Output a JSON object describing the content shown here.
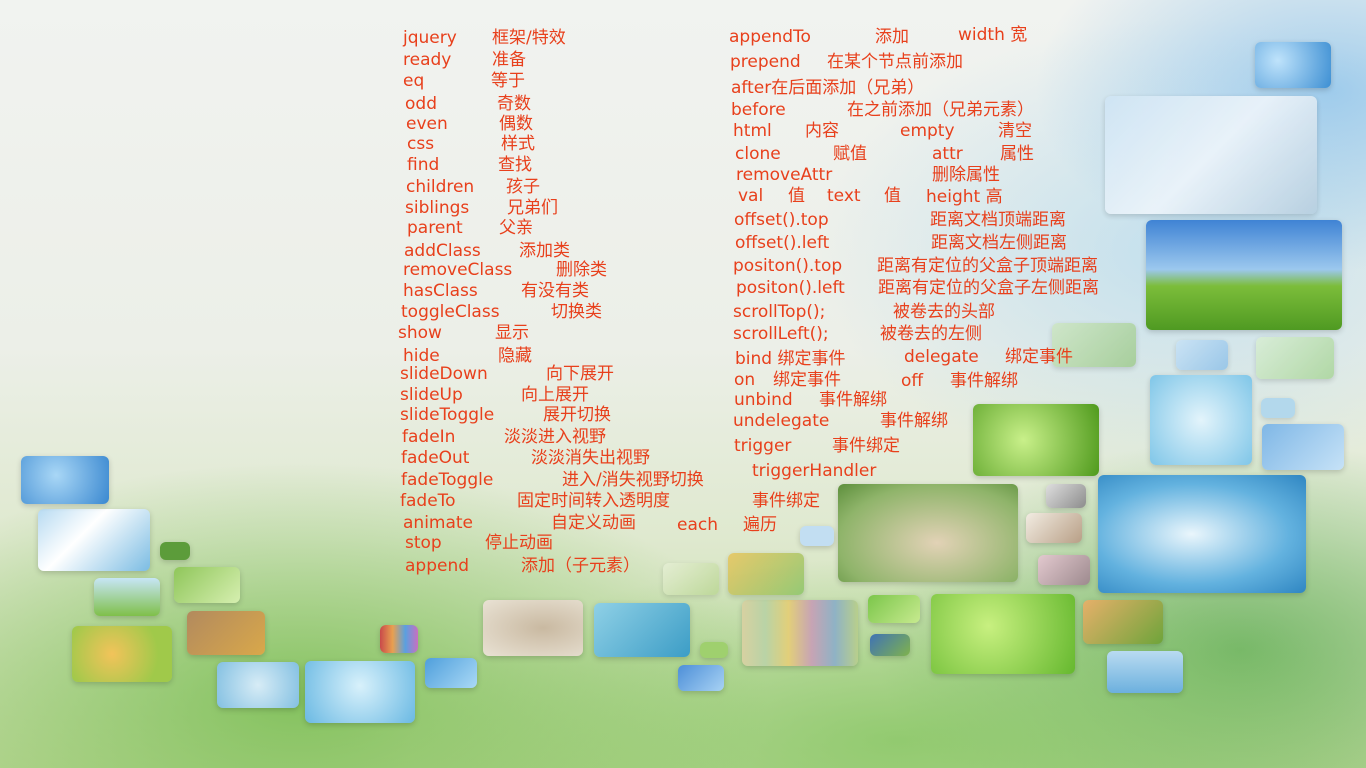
{
  "left_column": [
    {
      "term": "jquery",
      "desc": "框架/特效"
    },
    {
      "term": "ready",
      "desc": "准备"
    },
    {
      "term": "eq",
      "desc": "等于"
    },
    {
      "term": "odd",
      "desc": "奇数"
    },
    {
      "term": "even",
      "desc": "偶数"
    },
    {
      "term": "css",
      "desc": "样式"
    },
    {
      "term": "find",
      "desc": "查找"
    },
    {
      "term": "children",
      "desc": "孩子"
    },
    {
      "term": "siblings",
      "desc": "兄弟们"
    },
    {
      "term": "parent",
      "desc": "父亲"
    },
    {
      "term": "addClass",
      "desc": "添加类"
    },
    {
      "term": "removeClass",
      "desc": "删除类"
    },
    {
      "term": "hasClass",
      "desc": "有没有类"
    },
    {
      "term": "toggleClass",
      "desc": "切换类"
    },
    {
      "term": "show",
      "desc": "显示"
    },
    {
      "term": "hide",
      "desc": "隐藏"
    },
    {
      "term": "slideDown",
      "desc": "向下展开"
    },
    {
      "term": "slideUp",
      "desc": "向上展开"
    },
    {
      "term": "slideToggle",
      "desc": "展开切换"
    },
    {
      "term": "fadeIn",
      "desc": "淡淡进入视野"
    },
    {
      "term": "fadeOut",
      "desc": "淡淡消失出视野"
    },
    {
      "term": "fadeToggle",
      "desc": "进入/消失视野切换"
    },
    {
      "term": "fadeTo",
      "desc": "固定时间转入透明度"
    },
    {
      "term": "animate",
      "desc": "自定义动画"
    },
    {
      "term": "stop",
      "desc": "停止动画"
    },
    {
      "term": "append",
      "desc": "添加（子元素）"
    }
  ],
  "right_column": [
    {
      "term": "appendTo",
      "desc": "添加"
    },
    {
      "term": "prepend",
      "desc": "在某个节点前添加"
    },
    {
      "term": "after在后面添加（兄弟）",
      "desc": ""
    },
    {
      "term": "before",
      "desc": "在之前添加（兄弟元素）"
    },
    {
      "term": "html",
      "desc": "内容"
    },
    {
      "term": "clone",
      "desc": "赋值"
    },
    {
      "term": "removeAttr",
      "desc": "删除属性"
    },
    {
      "term": "val",
      "desc": "值"
    },
    {
      "term": "offset().top",
      "desc": "距离文档顶端距离"
    },
    {
      "term": "offset().left",
      "desc": "距离文档左侧距离"
    },
    {
      "term": "positon().top",
      "desc": "距离有定位的父盒子顶端距离"
    },
    {
      "term": "positon().left",
      "desc": "距离有定位的父盒子左侧距离"
    },
    {
      "term": "scrollTop();",
      "desc": "被卷去的头部"
    },
    {
      "term": "scrollLeft();",
      "desc": "被卷去的左侧"
    },
    {
      "term": "bind 绑定事件",
      "desc": ""
    },
    {
      "term": "on",
      "desc": "绑定事件"
    },
    {
      "term": "unbind",
      "desc": "事件解绑"
    },
    {
      "term": "undelegate",
      "desc": "事件解绑"
    },
    {
      "term": "trigger",
      "desc": "事件绑定"
    },
    {
      "term": "triggerHandler",
      "desc": ""
    }
  ],
  "extras": {
    "width": "width 宽",
    "empty": "empty",
    "empty_desc": "清空",
    "attr": "attr",
    "attr_desc": "属性",
    "text": "text",
    "text_desc": "值",
    "height": "height 高",
    "delegate": "delegate",
    "delegate_desc": "绑定事件",
    "off": "off",
    "off_desc": "事件解绑",
    "fadeTo_event": "事件绑定",
    "each": "each",
    "each_desc": "遍历"
  },
  "colors": {
    "text": "#e8401c"
  }
}
